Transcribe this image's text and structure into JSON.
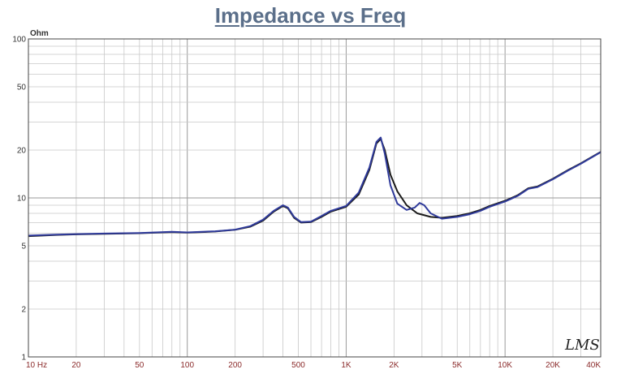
{
  "title": "Impedance vs Freq",
  "logo_text": "LMS",
  "chart_data": {
    "type": "line",
    "title": "Impedance vs Freq",
    "yunit": "Ohm",
    "xscale": "log",
    "yscale": "log",
    "xlim": [
      10,
      40000
    ],
    "ylim": [
      1,
      100
    ],
    "grid": true,
    "xticks": [
      {
        "v": 10,
        "label": "10  Hz"
      },
      {
        "v": 20,
        "label": "20"
      },
      {
        "v": 50,
        "label": "50"
      },
      {
        "v": 100,
        "label": "100"
      },
      {
        "v": 200,
        "label": "200"
      },
      {
        "v": 500,
        "label": "500"
      },
      {
        "v": 1000,
        "label": "1K"
      },
      {
        "v": 2000,
        "label": "2K"
      },
      {
        "v": 5000,
        "label": "5K"
      },
      {
        "v": 10000,
        "label": "10K"
      },
      {
        "v": 20000,
        "label": "20K"
      },
      {
        "v": 40000,
        "label": "40K"
      }
    ],
    "yticks": [
      {
        "v": 1,
        "label": "1"
      },
      {
        "v": 2,
        "label": "2"
      },
      {
        "v": 5,
        "label": "5"
      },
      {
        "v": 10,
        "label": "10"
      },
      {
        "v": 20,
        "label": "20"
      },
      {
        "v": 50,
        "label": "50"
      },
      {
        "v": 100,
        "label": "100"
      }
    ],
    "series": [
      {
        "color": "#1a1a1a",
        "points": [
          [
            10,
            5.75
          ],
          [
            15,
            5.85
          ],
          [
            20,
            5.9
          ],
          [
            30,
            5.95
          ],
          [
            50,
            6.0
          ],
          [
            80,
            6.1
          ],
          [
            100,
            6.05
          ],
          [
            150,
            6.15
          ],
          [
            200,
            6.3
          ],
          [
            250,
            6.6
          ],
          [
            300,
            7.2
          ],
          [
            350,
            8.2
          ],
          [
            400,
            8.9
          ],
          [
            430,
            8.6
          ],
          [
            470,
            7.5
          ],
          [
            520,
            7.0
          ],
          [
            600,
            7.05
          ],
          [
            700,
            7.6
          ],
          [
            800,
            8.2
          ],
          [
            1000,
            8.8
          ],
          [
            1200,
            10.5
          ],
          [
            1400,
            15.0
          ],
          [
            1550,
            22.0
          ],
          [
            1650,
            23.5
          ],
          [
            1750,
            20.0
          ],
          [
            1900,
            14.0
          ],
          [
            2100,
            11.0
          ],
          [
            2400,
            9.0
          ],
          [
            2800,
            8.0
          ],
          [
            3400,
            7.6
          ],
          [
            4000,
            7.5
          ],
          [
            5000,
            7.7
          ],
          [
            6000,
            8.0
          ],
          [
            7000,
            8.4
          ],
          [
            8000,
            8.9
          ],
          [
            10000,
            9.6
          ],
          [
            12000,
            10.4
          ],
          [
            14000,
            11.5
          ],
          [
            16000,
            11.8
          ],
          [
            20000,
            13.2
          ],
          [
            25000,
            15.0
          ],
          [
            30000,
            16.5
          ],
          [
            40000,
            19.5
          ]
        ]
      },
      {
        "color": "#2f3a9a",
        "points": [
          [
            10,
            5.8
          ],
          [
            15,
            5.88
          ],
          [
            20,
            5.92
          ],
          [
            30,
            5.97
          ],
          [
            50,
            6.02
          ],
          [
            80,
            6.12
          ],
          [
            100,
            6.07
          ],
          [
            150,
            6.17
          ],
          [
            200,
            6.32
          ],
          [
            250,
            6.65
          ],
          [
            300,
            7.3
          ],
          [
            350,
            8.3
          ],
          [
            400,
            9.0
          ],
          [
            430,
            8.7
          ],
          [
            470,
            7.6
          ],
          [
            520,
            7.05
          ],
          [
            600,
            7.1
          ],
          [
            700,
            7.7
          ],
          [
            800,
            8.3
          ],
          [
            1000,
            8.9
          ],
          [
            1200,
            10.8
          ],
          [
            1400,
            15.5
          ],
          [
            1550,
            22.5
          ],
          [
            1650,
            24.0
          ],
          [
            1750,
            19.0
          ],
          [
            1900,
            12.0
          ],
          [
            2100,
            9.2
          ],
          [
            2400,
            8.4
          ],
          [
            2700,
            8.7
          ],
          [
            2900,
            9.3
          ],
          [
            3100,
            9.0
          ],
          [
            3400,
            8.0
          ],
          [
            4000,
            7.4
          ],
          [
            5000,
            7.6
          ],
          [
            6000,
            7.9
          ],
          [
            7000,
            8.3
          ],
          [
            8000,
            8.8
          ],
          [
            10000,
            9.5
          ],
          [
            12000,
            10.3
          ],
          [
            14000,
            11.4
          ],
          [
            16000,
            11.7
          ],
          [
            20000,
            13.1
          ],
          [
            25000,
            14.9
          ],
          [
            30000,
            16.4
          ],
          [
            40000,
            19.4
          ]
        ]
      }
    ]
  }
}
